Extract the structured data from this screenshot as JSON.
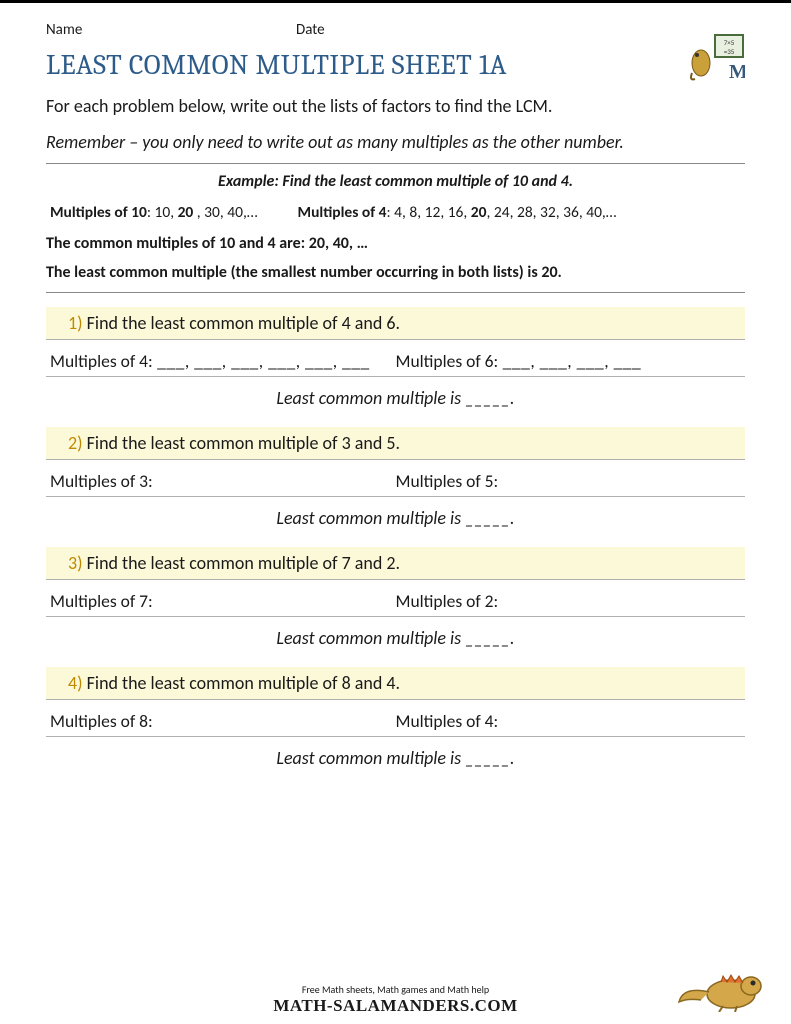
{
  "colors": {
    "title": "#2e5c8a",
    "highlight_bg": "#fcf9d9",
    "number": "#c08a00",
    "rule": "#b0b0b0",
    "text": "#1a1a1a",
    "page_bg": "#ffffff"
  },
  "fonts": {
    "body": "Calibri",
    "title": "Cambria",
    "body_size_pt": 13,
    "title_size_pt": 21
  },
  "header": {
    "name_label": "Name",
    "date_label": "Date"
  },
  "title": "LEAST COMMON MULTIPLE SHEET 1A",
  "intro": "For each problem below, write out the lists of factors to find the LCM.",
  "remember": "Remember – you only need to write out as many multiples as the other number.",
  "example": {
    "title": "Example: Find the least common multiple of 10 and 4.",
    "list_a_label": "Multiples of 10",
    "list_a_values": ": 10, ",
    "list_a_bold": "20",
    "list_a_tail": " , 30, 40,…",
    "list_b_label": "Multiples of 4",
    "list_b_values": ": 4, 8, 12, 16, ",
    "list_b_bold": "20",
    "list_b_tail": ", 24, 28, 32, 36, 40,…",
    "common": "The common multiples of 10 and 4 are: 20, 40, …",
    "least": "The least common multiple (the smallest number occurring in both lists) is 20."
  },
  "problems": [
    {
      "num": "1)",
      "prompt": "Find the least common multiple of 4 and 6.",
      "mult_a_label": "Multiples of 4:",
      "mult_a_blanks": "   ___, ___, ___, ___, ___, ___",
      "mult_b_label": "Multiples of 6:",
      "mult_b_blanks": "   ___, ___, ___, ___",
      "answer": "Least common multiple is _____."
    },
    {
      "num": "2)",
      "prompt": "Find the least common multiple of 3 and 5.",
      "mult_a_label": "Multiples of 3:",
      "mult_a_blanks": "",
      "mult_b_label": "Multiples of 5:",
      "mult_b_blanks": "",
      "answer": "Least common multiple is _____."
    },
    {
      "num": "3)",
      "prompt": "Find the least common multiple of 7 and 2.",
      "mult_a_label": "Multiples of 7:",
      "mult_a_blanks": "",
      "mult_b_label": "Multiples of 2:",
      "mult_b_blanks": "",
      "answer": "Least common multiple is _____."
    },
    {
      "num": "4)",
      "prompt": "Find the least common multiple of 8 and 4.",
      "mult_a_label": "Multiples of 8:",
      "mult_a_blanks": "",
      "mult_b_label": "Multiples of 4:",
      "mult_b_blanks": "",
      "answer": "Least common multiple is _____."
    }
  ],
  "footer": {
    "tagline": "Free Math sheets, Math games and Math help",
    "site": "MATH-SALAMANDERS.COM"
  }
}
